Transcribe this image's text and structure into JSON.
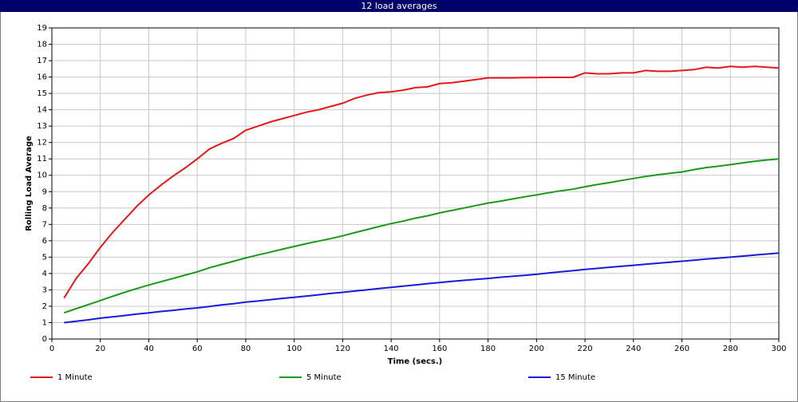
{
  "chart_data": {
    "type": "line",
    "title": "12 load averages",
    "x_label": "Time (secs.)",
    "y_label": "Rolling Load Average",
    "x": [
      5,
      10,
      15,
      20,
      25,
      30,
      35,
      40,
      45,
      50,
      55,
      60,
      65,
      70,
      75,
      80,
      85,
      90,
      95,
      100,
      105,
      110,
      115,
      120,
      125,
      130,
      135,
      140,
      145,
      150,
      155,
      160,
      165,
      170,
      175,
      180,
      185,
      190,
      195,
      200,
      205,
      210,
      215,
      220,
      225,
      230,
      235,
      240,
      245,
      250,
      255,
      260,
      265,
      270,
      275,
      280,
      285,
      290,
      295,
      300
    ],
    "series": [
      {
        "name": "1 Minute",
        "color": "#e8191a",
        "values": [
          2.5,
          3.7,
          4.6,
          5.6,
          6.5,
          7.3,
          8.1,
          8.8,
          9.4,
          9.95,
          10.45,
          11.0,
          11.6,
          11.95,
          12.25,
          12.75,
          13.0,
          13.25,
          13.45,
          13.65,
          13.85,
          14.0,
          14.2,
          14.4,
          14.7,
          14.9,
          15.05,
          15.1,
          15.2,
          15.35,
          15.4,
          15.6,
          15.65,
          15.75,
          15.85,
          15.95,
          15.95,
          15.95,
          15.97,
          15.97,
          15.98,
          15.98,
          15.98,
          16.25,
          16.2,
          16.2,
          16.25,
          16.25,
          16.4,
          16.35,
          16.35,
          16.4,
          16.45,
          16.6,
          16.55,
          16.65,
          16.6,
          16.65,
          16.6,
          16.55
        ]
      },
      {
        "name": "5 Minute",
        "color": "#1a991a",
        "values": [
          1.6,
          1.85,
          2.1,
          2.35,
          2.6,
          2.85,
          3.08,
          3.3,
          3.5,
          3.7,
          3.9,
          4.1,
          4.35,
          4.55,
          4.75,
          4.95,
          5.13,
          5.3,
          5.48,
          5.65,
          5.82,
          5.98,
          6.13,
          6.3,
          6.5,
          6.68,
          6.87,
          7.05,
          7.2,
          7.38,
          7.52,
          7.7,
          7.85,
          8.0,
          8.15,
          8.3,
          8.42,
          8.55,
          8.68,
          8.8,
          8.93,
          9.05,
          9.15,
          9.3,
          9.43,
          9.55,
          9.68,
          9.8,
          9.93,
          10.03,
          10.12,
          10.2,
          10.35,
          10.47,
          10.55,
          10.65,
          10.75,
          10.85,
          10.93,
          11.0
        ]
      },
      {
        "name": "15 Minute",
        "color": "#1a1ad9",
        "values": [
          1.0,
          1.08,
          1.17,
          1.27,
          1.35,
          1.43,
          1.52,
          1.6,
          1.68,
          1.75,
          1.83,
          1.9,
          1.99,
          2.08,
          2.16,
          2.25,
          2.32,
          2.4,
          2.48,
          2.55,
          2.62,
          2.7,
          2.78,
          2.85,
          2.93,
          3.0,
          3.08,
          3.15,
          3.23,
          3.3,
          3.38,
          3.45,
          3.52,
          3.58,
          3.64,
          3.7,
          3.77,
          3.83,
          3.89,
          3.95,
          4.03,
          4.1,
          4.17,
          4.25,
          4.31,
          4.38,
          4.44,
          4.5,
          4.57,
          4.63,
          4.69,
          4.75,
          4.81,
          4.88,
          4.94,
          5.0,
          5.06,
          5.13,
          5.19,
          5.25
        ]
      }
    ],
    "xlim": [
      0,
      300
    ],
    "xticks": [
      0,
      20,
      40,
      60,
      80,
      100,
      120,
      140,
      160,
      180,
      200,
      220,
      240,
      260,
      280,
      300
    ],
    "ylim": [
      0,
      19
    ],
    "yticks": [
      0,
      1,
      2,
      3,
      4,
      5,
      6,
      7,
      8,
      9,
      10,
      11,
      12,
      13,
      14,
      15,
      16,
      17,
      18,
      19
    ],
    "grid": true,
    "legend": "bottom"
  }
}
